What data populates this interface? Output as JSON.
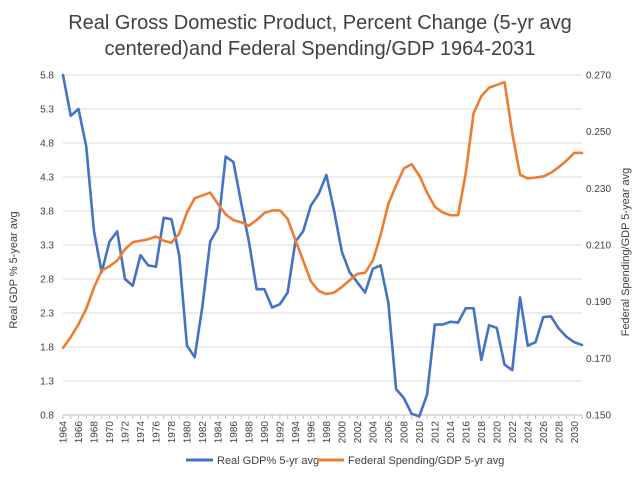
{
  "chart_data": {
    "type": "line",
    "title_lines": [
      "Real Gross Domestic Product, Percent Change (5-yr avg",
      "centered)and Federal Spending/GDP 1964-2031"
    ],
    "ylabel_left": "Real GDP % 5-year avg",
    "ylabel_right": "Federal Spending/GDP 5-year avg",
    "ylim_left": [
      0.8,
      5.8
    ],
    "ylim_right": [
      0.15,
      0.27
    ],
    "yticks_left": [
      "0.8",
      "1.3",
      "1.8",
      "2.3",
      "2.8",
      "3.3",
      "3.8",
      "4.3",
      "4.8",
      "5.3",
      "5.8"
    ],
    "yticks_right": [
      "0.150",
      "0.170",
      "0.190",
      "0.210",
      "0.230",
      "0.250",
      "0.270"
    ],
    "x": [
      1964,
      1965,
      1966,
      1967,
      1968,
      1969,
      1970,
      1971,
      1972,
      1973,
      1974,
      1975,
      1976,
      1977,
      1978,
      1979,
      1980,
      1981,
      1982,
      1983,
      1984,
      1985,
      1986,
      1987,
      1988,
      1989,
      1990,
      1991,
      1992,
      1993,
      1994,
      1995,
      1996,
      1997,
      1998,
      1999,
      2000,
      2001,
      2002,
      2003,
      2004,
      2005,
      2006,
      2007,
      2008,
      2009,
      2010,
      2011,
      2012,
      2013,
      2014,
      2015,
      2016,
      2017,
      2018,
      2019,
      2020,
      2021,
      2022,
      2023,
      2024,
      2025,
      2026,
      2027,
      2028,
      2029,
      2030,
      2031
    ],
    "xticks": [
      "1964",
      "1966",
      "1968",
      "1970",
      "1972",
      "1974",
      "1976",
      "1978",
      "1980",
      "1982",
      "1984",
      "1986",
      "1988",
      "1990",
      "1992",
      "1994",
      "1996",
      "1998",
      "2000",
      "2002",
      "2004",
      "2006",
      "2008",
      "2010",
      "2012",
      "2014",
      "2016",
      "2018",
      "2020",
      "2022",
      "2024",
      "2026",
      "2028",
      "2030"
    ],
    "series": [
      {
        "name": "Real GDP% 5-yr avg",
        "axis": "left",
        "color": "#4472C4",
        "values": [
          5.8,
          5.2,
          5.3,
          4.75,
          3.5,
          2.9,
          3.35,
          3.5,
          2.8,
          2.7,
          3.15,
          3.0,
          2.98,
          3.7,
          3.68,
          3.15,
          1.82,
          1.65,
          2.4,
          3.35,
          3.55,
          4.6,
          4.52,
          3.92,
          3.35,
          2.65,
          2.65,
          2.38,
          2.43,
          2.6,
          3.35,
          3.5,
          3.88,
          4.05,
          4.33,
          3.8,
          3.2,
          2.9,
          2.75,
          2.6,
          2.95,
          3.0,
          2.45,
          1.18,
          1.05,
          0.82,
          0.78,
          1.1,
          2.13,
          2.13,
          2.17,
          2.16,
          2.37,
          2.37,
          1.61,
          2.12,
          2.08,
          1.54,
          1.46,
          2.53,
          1.82,
          1.87,
          2.24,
          2.25,
          2.07,
          1.95,
          1.87,
          1.83
        ]
      },
      {
        "name": "Federal Spending/GDP 5-yr avg",
        "axis": "right",
        "color": "#ED7D31",
        "values": [
          0.1737,
          0.1775,
          0.182,
          0.1875,
          0.195,
          0.201,
          0.2025,
          0.2045,
          0.2085,
          0.211,
          0.2115,
          0.212,
          0.213,
          0.2115,
          0.2108,
          0.214,
          0.2215,
          0.2265,
          0.2275,
          0.2285,
          0.2245,
          0.2208,
          0.2188,
          0.218,
          0.2168,
          0.2188,
          0.2213,
          0.2222,
          0.2222,
          0.2192,
          0.2118,
          0.2045,
          0.1972,
          0.1938,
          0.1927,
          0.1932,
          0.1952,
          0.1975,
          0.1998,
          0.2002,
          0.2045,
          0.2135,
          0.2245,
          0.231,
          0.237,
          0.2385,
          0.2345,
          0.2285,
          0.2235,
          0.2215,
          0.2205,
          0.2205,
          0.2355,
          0.2565,
          0.2625,
          0.2655,
          0.2665,
          0.2675,
          0.2495,
          0.2348,
          0.2335,
          0.2338,
          0.2342,
          0.2355,
          0.2375,
          0.2398,
          0.2425,
          0.2425
        ]
      }
    ],
    "legend_position": "bottom"
  }
}
